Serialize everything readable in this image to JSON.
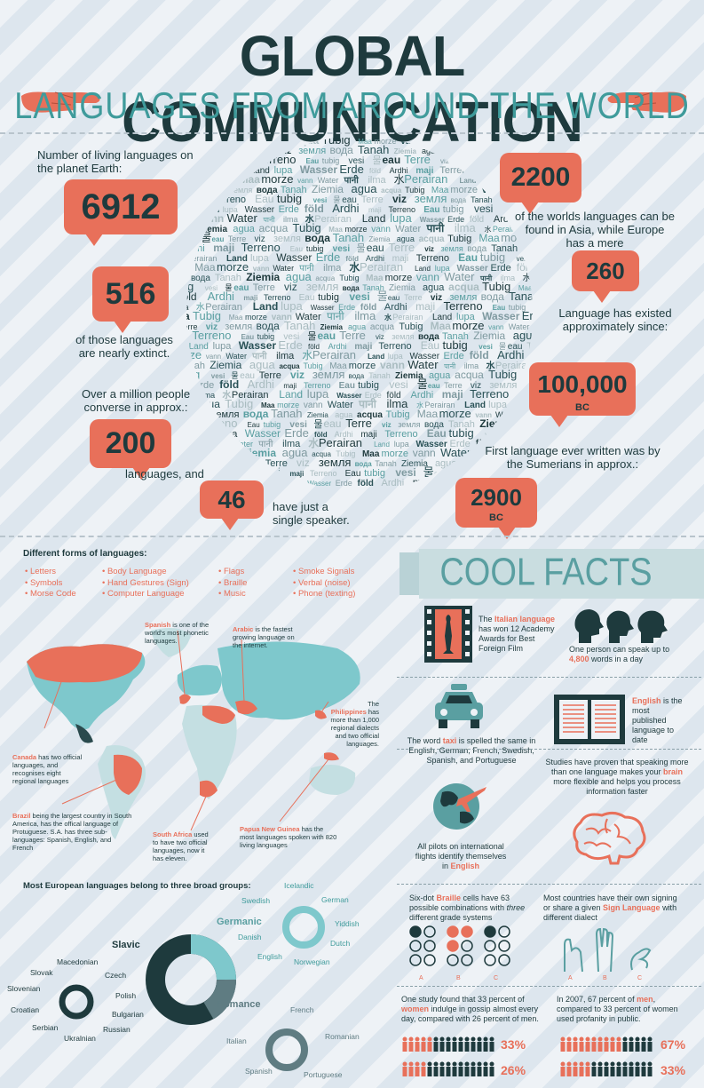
{
  "header": {
    "title": "GLOBAL COMMUNICATION",
    "subtitle": "LANGUAGES FROM AROUND THE WORLD"
  },
  "stats": {
    "living_label": "Number of living languages on the planet Earth:",
    "living_value": "6912",
    "extinct_value": "516",
    "extinct_label": "of those languages are nearly extinct.",
    "million_label": "Over a million people converse in approx.:",
    "million_value": "200",
    "languages_and": "languages, and",
    "single_value": "46",
    "single_label": "have just a single speaker.",
    "asia_value": "2200",
    "asia_label": "of the worlds languages can be found in Asia, while Europe has a mere",
    "europe_value": "260",
    "existed_label": "Language has existed approximately since:",
    "existed_value": "100,000",
    "existed_unit": "BC",
    "written_label": "First language ever written was by the Sumerians in approx.:",
    "written_value": "2900",
    "written_unit": "BC"
  },
  "cloud_words": [
    "вода",
    "Perairan",
    "eau",
    "Water",
    "Eau",
    "Tubig",
    "föld",
    "Tanah",
    "Land",
    "Terre",
    "पानी",
    "tubig",
    "Maa",
    "Ardhi",
    "Ziemia",
    "lupa",
    "viz",
    "ilma",
    "vesi",
    "morze",
    "maji",
    "agua",
    "Wasser",
    "земля",
    "水",
    "물",
    "vann",
    "Terreno",
    "acqua",
    "Erde"
  ],
  "forms": {
    "title": "Different forms of languages:",
    "col1": [
      "Letters",
      "Symbols",
      "Morse Code"
    ],
    "col2": [
      "Body Language",
      "Hand Gestures (Sign)",
      "Computer Language"
    ],
    "col3": [
      "Flags",
      "Braille",
      "Music"
    ],
    "col4": [
      "Smoke Signals",
      "Verbal (noise)",
      "Phone (texting)"
    ]
  },
  "map": {
    "spanish_b": "Spanish",
    "spanish_t": " is one of the world's most phonetic languages.",
    "arabic_b": "Arabic",
    "arabic_t": " is the fastest growing language on the internet.",
    "phil_pre": "The ",
    "phil_b": "Philippines",
    "phil_t": " has more than 1,000 regional dialects and two official languages.",
    "canada_b": "Canada",
    "canada_t": " has two official languages, and recognises eight regional languages",
    "brazil_b": "Brazil",
    "brazil_t": " being the largest country in South America, has the offical language of Protuguese. S.A. has three sub-languages: Spanish, English, and French",
    "sa_b": "South Africa",
    "sa_t": " used to have two official languages, now it has eleven.",
    "png_b": "Papua New Guinea",
    "png_t": " has the most languages spoken with 820 living languages"
  },
  "groups": {
    "title": "Most European languages belong to three broad groups:",
    "slavic": "Slavic",
    "slavic_items": [
      "Macedonian",
      "Czech",
      "Slovak",
      "Polish",
      "Slovenian",
      "Bulgarian",
      "Croatian",
      "Russian",
      "Serbian",
      "Ukralnian"
    ],
    "germanic": "Germanic",
    "germanic_items": [
      "Icelandic",
      "Swedish",
      "German",
      "Yiddish",
      "Danish",
      "Dutch",
      "English",
      "Norwegian"
    ],
    "romance": "Romance",
    "romance_items": [
      "French",
      "Italian",
      "Romanian",
      "Spanish",
      "Portuguese"
    ]
  },
  "facts": {
    "banner": "COOL FACTS",
    "oscar_pre": "The ",
    "oscar_b": "Italian language",
    "oscar_t": " has won 12 Academy Awards for Best Foreign Film",
    "words_t": "One person can speak up to ",
    "words_b": "4,800",
    "words_t2": " words in a day",
    "taxi_t": "The word ",
    "taxi_b": "taxi",
    "taxi_t2": " is spelled the same in English, German, French, Swedish, Spanish, and Portuguese",
    "english_b": "English",
    "english_t": " is the most published language to date",
    "brain_t": "Studies have proven that speaking more than one language makes your ",
    "brain_b": "brain",
    "brain_t2": " more flexible and helps you process information faster",
    "pilots_t": "All pilots on international flights identify themselves in ",
    "pilots_b": "English",
    "braille_t": "Six-dot ",
    "braille_b": "Braille",
    "braille_t2": " cells have 63 possible combinations with ",
    "braille_i": "three",
    "braille_t3": " different grade systems",
    "sign_t": "Most countries have their own signing or share a given ",
    "sign_b": "Sign Language",
    "sign_t2": " with different dialect",
    "labels_abc": [
      "A",
      "B",
      "C"
    ],
    "gossip_t": "One study found that 33 percent of ",
    "gossip_b": "women",
    "gossip_t2": " indulge in gossip almost every day, compared with 26 percent of men.",
    "profane_t": "In 2007, 67 percent of ",
    "profane_b": "men",
    "profane_t2": ", compared to 33 percent of women used profanity in public.",
    "pct_women": "33%",
    "pct_men": "26%",
    "pct_men2": "67%",
    "pct_women2": "33%"
  },
  "colors": {
    "accent": "#e8705a",
    "dark": "#1e3a3d",
    "teal": "#5a9fa1",
    "light_teal": "#7ec8cc"
  }
}
